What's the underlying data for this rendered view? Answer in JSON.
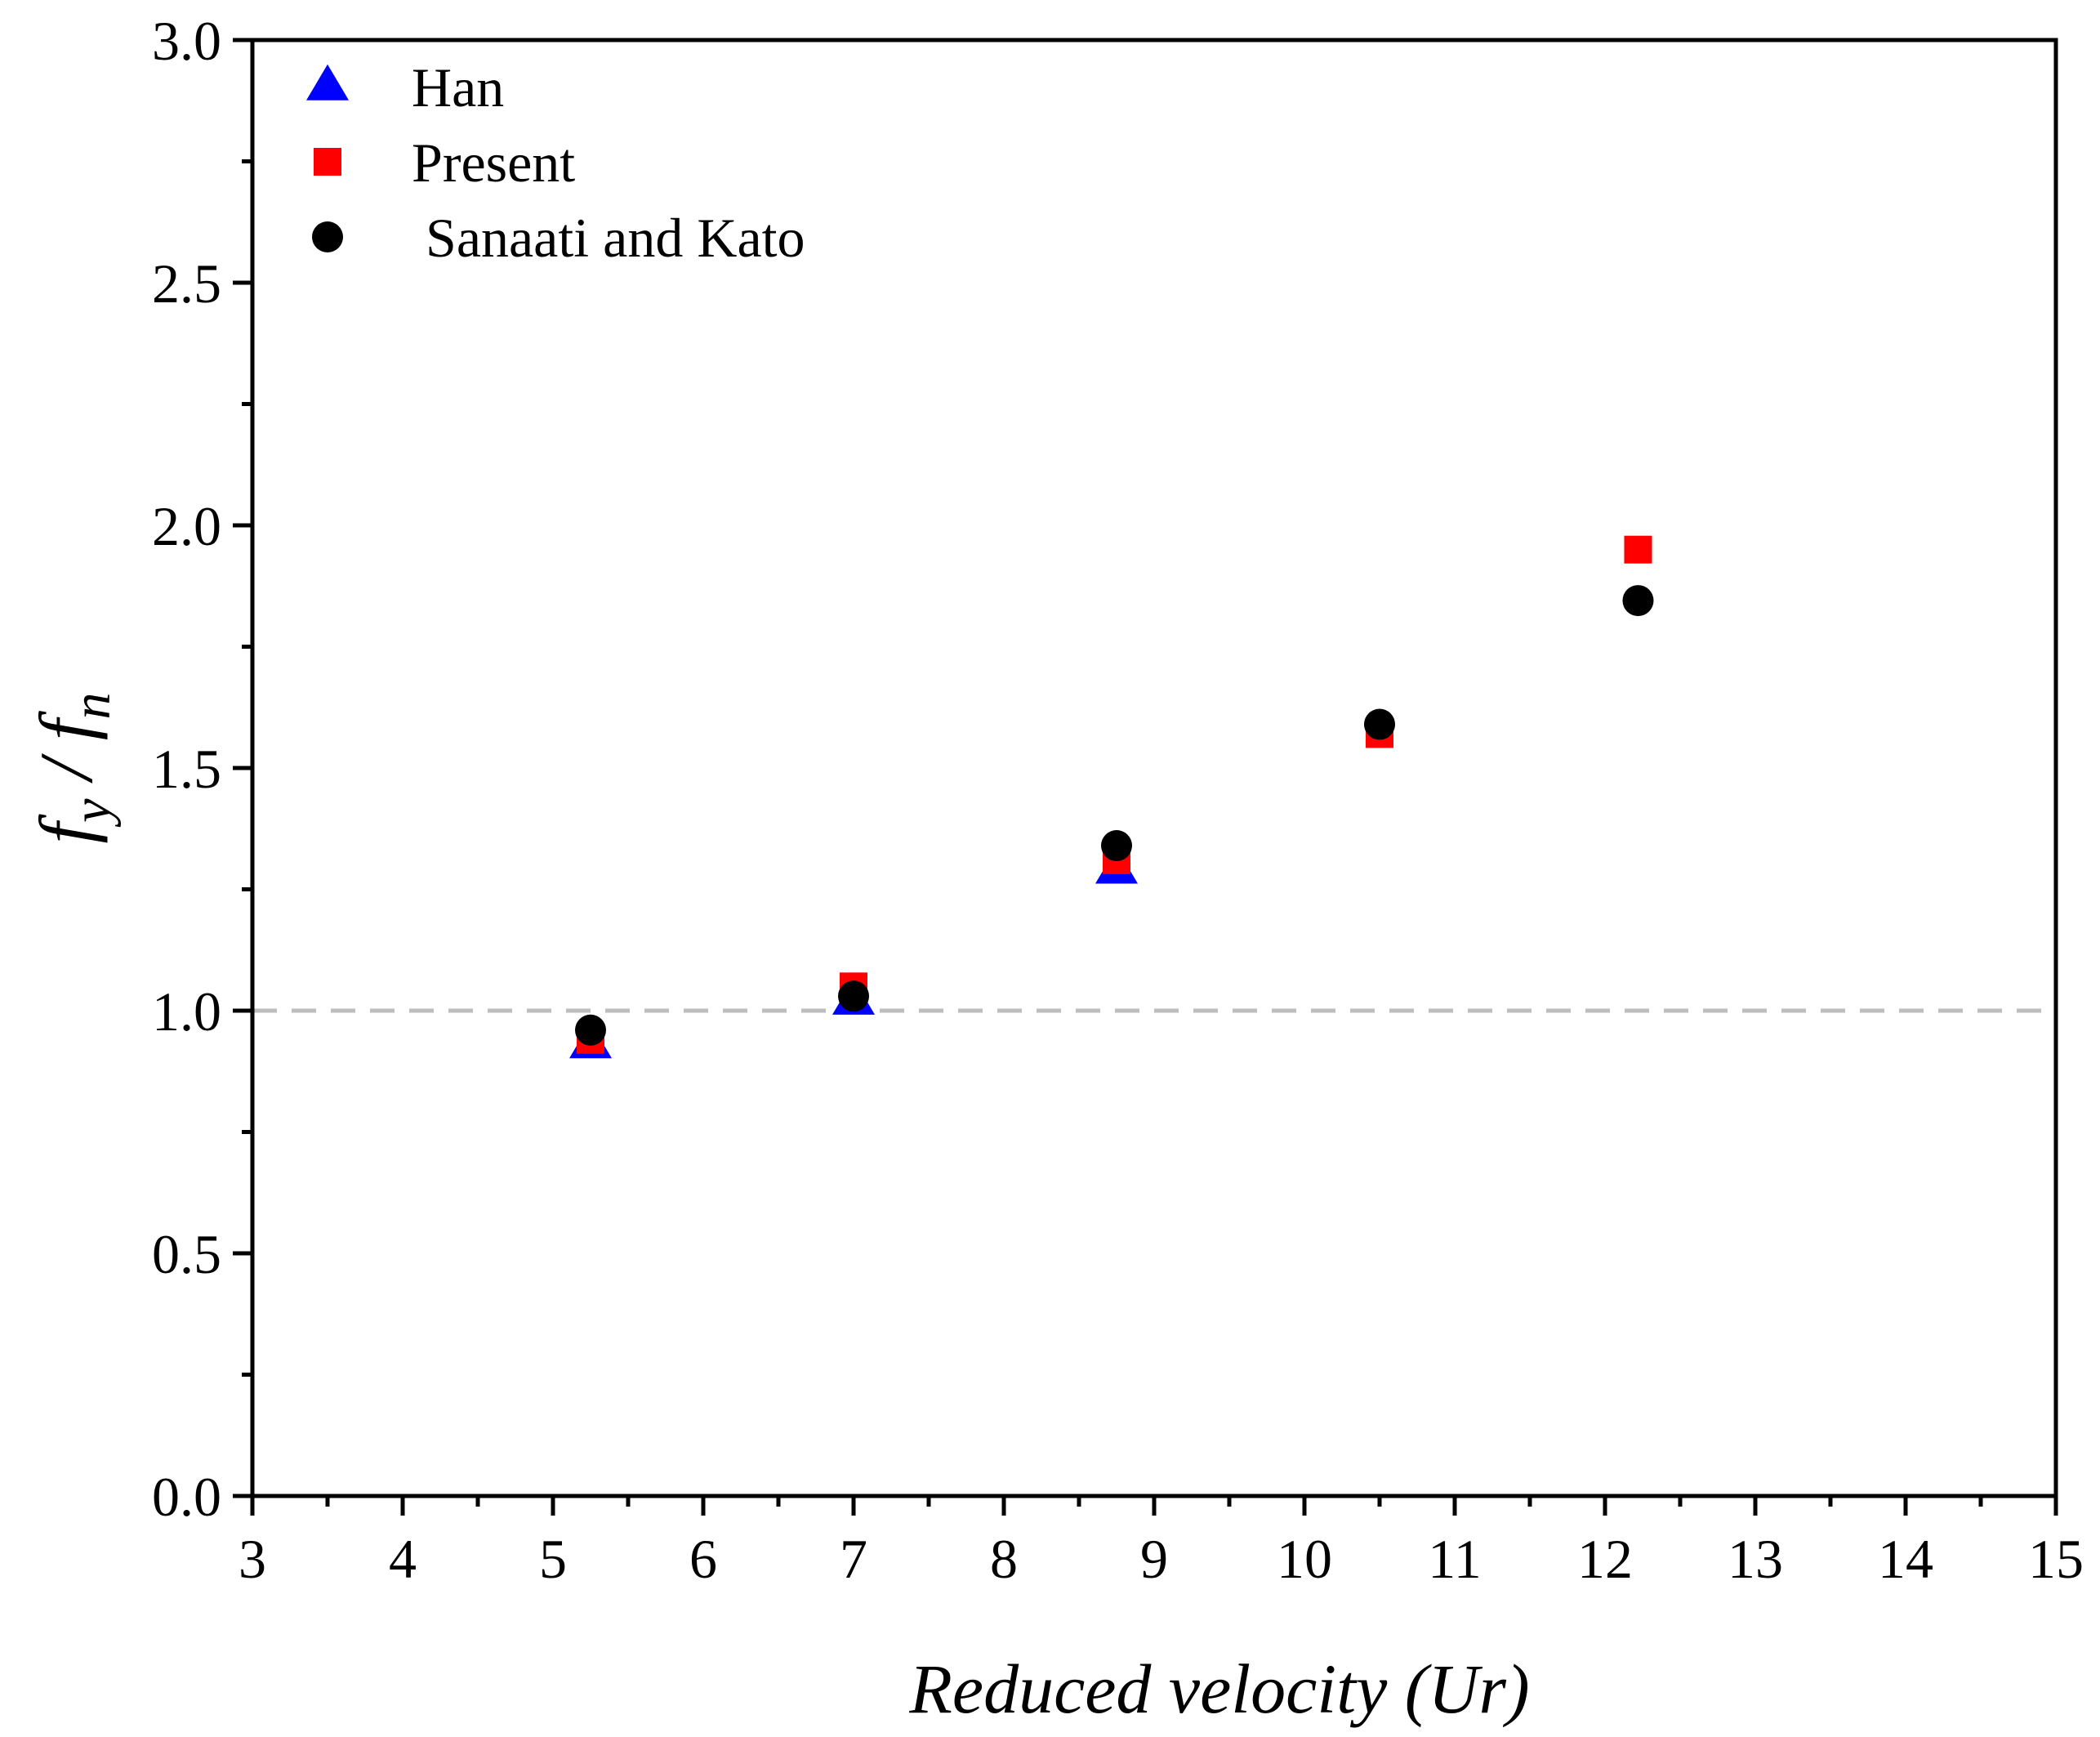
{
  "chart_data": {
    "type": "scatter",
    "xlabel": "Reduced velocity (Ur)",
    "ylabel": {
      "f1": "f",
      "s1": "y",
      "sep": " / ",
      "f2": "f",
      "s2": "n"
    },
    "xlim": [
      3,
      15
    ],
    "ylim": [
      0.0,
      3.0
    ],
    "x_ticks": [
      "3",
      "4",
      "5",
      "6",
      "7",
      "8",
      "9",
      "10",
      "11",
      "12",
      "13",
      "14",
      "15"
    ],
    "y_ticks": [
      "0.0",
      "0.5",
      "1.0",
      "1.5",
      "2.0",
      "2.5",
      "3.0"
    ],
    "reference_line": {
      "y": 1.0,
      "style": "dashed",
      "color": "#bdbdbd"
    },
    "legend_position": "top-left",
    "series": [
      {
        "name": "Han",
        "marker": "triangle",
        "color": "#0000ff",
        "x": [
          5.25,
          7.0,
          8.75
        ],
        "y": [
          0.93,
          1.02,
          1.29
        ]
      },
      {
        "name": "Present",
        "marker": "square",
        "color": "#ff0000",
        "x": [
          5.25,
          7.0,
          8.75,
          10.5,
          12.22
        ],
        "y": [
          0.94,
          1.05,
          1.31,
          1.57,
          1.95
        ]
      },
      {
        "name": " Sanaati and Kato",
        "marker": "circle",
        "color": "#000000",
        "x": [
          5.25,
          7.0,
          8.75,
          10.5,
          12.22
        ],
        "y": [
          0.96,
          1.03,
          1.34,
          1.59,
          1.845
        ]
      }
    ]
  }
}
